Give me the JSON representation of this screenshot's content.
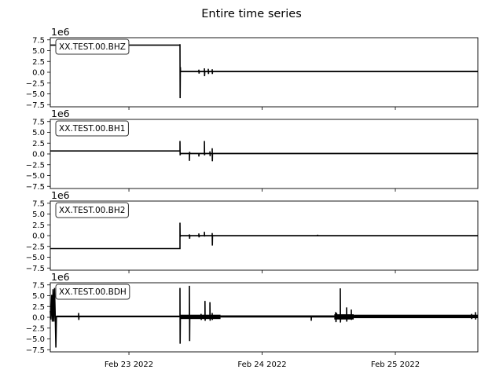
{
  "chart_data": {
    "type": "line",
    "title": "Entire time series",
    "xlim": [
      "2022-02-22T09:50",
      "2022-02-25T14:52"
    ],
    "ylim": [
      -8,
      8
    ],
    "y_ticks": [
      "7.5",
      "5.0",
      "2.5",
      "0.0",
      "−2.5",
      "−5.0",
      "−7.5"
    ],
    "y_tick_values": [
      7.5,
      5,
      2.5,
      0,
      -2.5,
      -5,
      -7.5
    ],
    "y_offset_label": "1e6",
    "x_ticks": [
      {
        "label": "Feb 23 2022",
        "t": "2022-02-23T00:00"
      },
      {
        "label": "Feb 24 2022",
        "t": "2022-02-24T00:00"
      },
      {
        "label": "Feb 25 2022",
        "t": "2022-02-25T00:00"
      }
    ],
    "grid": false,
    "series_color": "#000000",
    "series": [
      {
        "name": "XX.TEST.00.BHZ",
        "points": [
          [
            "2022-02-22T09:50",
            6.3
          ],
          [
            "2022-02-23T09:12",
            6.3
          ],
          [
            "2022-02-23T09:12",
            6.5
          ],
          [
            "2022-02-23T09:14",
            -6.0
          ],
          [
            "2022-02-23T09:16",
            1.2
          ],
          [
            "2022-02-23T09:18",
            0.2
          ],
          [
            "2022-02-23T12:36",
            0.2
          ],
          [
            "2022-02-23T12:36",
            0.6
          ],
          [
            "2022-02-23T12:38",
            -0.3
          ],
          [
            "2022-02-23T12:40",
            0.2
          ],
          [
            "2022-02-23T13:36",
            0.2
          ],
          [
            "2022-02-23T13:36",
            0.9
          ],
          [
            "2022-02-23T13:38",
            -0.9
          ],
          [
            "2022-02-23T13:40",
            0.2
          ],
          [
            "2022-02-23T14:18",
            0.2
          ],
          [
            "2022-02-23T14:18",
            0.8
          ],
          [
            "2022-02-23T14:20",
            -0.4
          ],
          [
            "2022-02-23T14:22",
            0.2
          ],
          [
            "2022-02-23T15:00",
            0.2
          ],
          [
            "2022-02-23T15:00",
            0.7
          ],
          [
            "2022-02-23T15:02",
            -0.4
          ],
          [
            "2022-02-23T15:04",
            0.2
          ],
          [
            "2022-02-25T14:52",
            0.2
          ]
        ],
        "noise": [
          {
            "from": "2022-02-23T09:18",
            "to": "2022-02-25T14:52",
            "center": 0.2,
            "amp": 0.15
          }
        ]
      },
      {
        "name": "XX.TEST.00.BH1",
        "points": [
          [
            "2022-02-22T09:50",
            0.7
          ],
          [
            "2022-02-23T09:12",
            0.7
          ],
          [
            "2022-02-23T09:12",
            3.0
          ],
          [
            "2022-02-23T09:14",
            -0.3
          ],
          [
            "2022-02-23T09:16",
            0.1
          ],
          [
            "2022-02-23T10:54",
            0.1
          ],
          [
            "2022-02-23T10:54",
            -1.6
          ],
          [
            "2022-02-23T10:56",
            0.5
          ],
          [
            "2022-02-23T10:58",
            0.1
          ],
          [
            "2022-02-23T12:36",
            0.1
          ],
          [
            "2022-02-23T12:36",
            -0.6
          ],
          [
            "2022-02-23T12:38",
            0.1
          ],
          [
            "2022-02-23T13:36",
            0.1
          ],
          [
            "2022-02-23T13:36",
            3.0
          ],
          [
            "2022-02-23T13:38",
            -0.3
          ],
          [
            "2022-02-23T13:40",
            0.1
          ],
          [
            "2022-02-23T14:36",
            0.1
          ],
          [
            "2022-02-23T14:36",
            0.6
          ],
          [
            "2022-02-23T14:38",
            -0.5
          ],
          [
            "2022-02-23T14:40",
            0.1
          ],
          [
            "2022-02-23T15:00",
            0.1
          ],
          [
            "2022-02-23T15:00",
            1.3
          ],
          [
            "2022-02-23T15:02",
            -1.7
          ],
          [
            "2022-02-23T15:04",
            0.1
          ],
          [
            "2022-02-25T14:52",
            0.1
          ]
        ],
        "noise": [
          {
            "from": "2022-02-23T09:16",
            "to": "2022-02-25T14:52",
            "center": 0.1,
            "amp": 0.12
          }
        ]
      },
      {
        "name": "XX.TEST.00.BH2",
        "points": [
          [
            "2022-02-22T09:50",
            -3.0
          ],
          [
            "2022-02-23T09:12",
            -3.0
          ],
          [
            "2022-02-23T09:12",
            3.0
          ],
          [
            "2022-02-23T09:14",
            -0.3
          ],
          [
            "2022-02-23T09:16",
            0.0
          ],
          [
            "2022-02-23T10:54",
            0.0
          ],
          [
            "2022-02-23T10:54",
            0.3
          ],
          [
            "2022-02-23T10:56",
            -0.7
          ],
          [
            "2022-02-23T10:58",
            0.0
          ],
          [
            "2022-02-23T12:36",
            0.0
          ],
          [
            "2022-02-23T12:36",
            0.5
          ],
          [
            "2022-02-23T12:38",
            -0.4
          ],
          [
            "2022-02-23T12:40",
            0.0
          ],
          [
            "2022-02-23T13:36",
            0.0
          ],
          [
            "2022-02-23T13:36",
            0.9
          ],
          [
            "2022-02-23T13:38",
            -0.2
          ],
          [
            "2022-02-23T13:40",
            0.0
          ],
          [
            "2022-02-23T15:00",
            0.0
          ],
          [
            "2022-02-23T15:00",
            0.6
          ],
          [
            "2022-02-23T15:02",
            -2.3
          ],
          [
            "2022-02-23T15:04",
            0.0
          ],
          [
            "2022-02-24T10:00",
            0.0
          ],
          [
            "2022-02-24T10:00",
            0.2
          ],
          [
            "2022-02-24T10:02",
            0.0
          ],
          [
            "2022-02-25T14:52",
            0.0
          ]
        ],
        "noise": [
          {
            "from": "2022-02-23T09:16",
            "to": "2022-02-25T14:52",
            "center": 0.0,
            "amp": 0.1
          }
        ]
      },
      {
        "name": "XX.TEST.00.BDH",
        "points": [
          [
            "2022-02-22T09:50",
            1.5
          ],
          [
            "2022-02-22T09:55",
            -0.5
          ],
          [
            "2022-02-22T10:05",
            5.2
          ],
          [
            "2022-02-22T10:12",
            -1.0
          ],
          [
            "2022-02-22T10:20",
            6.5
          ],
          [
            "2022-02-22T10:28",
            -1.0
          ],
          [
            "2022-02-22T10:36",
            6.8
          ],
          [
            "2022-02-22T10:44",
            -0.5
          ],
          [
            "2022-02-22T10:50",
            -7.0
          ],
          [
            "2022-02-22T10:56",
            0.2
          ],
          [
            "2022-02-22T14:56",
            0.2
          ],
          [
            "2022-02-22T14:56",
            1.0
          ],
          [
            "2022-02-22T14:58",
            -0.6
          ],
          [
            "2022-02-22T15:00",
            0.2
          ],
          [
            "2022-02-23T09:12",
            0.2
          ],
          [
            "2022-02-23T09:12",
            6.8
          ],
          [
            "2022-02-23T09:14",
            -6.1
          ],
          [
            "2022-02-23T09:16",
            0.2
          ],
          [
            "2022-02-23T10:54",
            0.2
          ],
          [
            "2022-02-23T10:54",
            7.3
          ],
          [
            "2022-02-23T10:56",
            -5.5
          ],
          [
            "2022-02-23T10:58",
            0.2
          ],
          [
            "2022-02-23T13:00",
            0.2
          ],
          [
            "2022-02-23T13:00",
            0.8
          ],
          [
            "2022-02-23T13:02",
            -0.6
          ],
          [
            "2022-02-23T13:04",
            0.2
          ],
          [
            "2022-02-23T13:42",
            0.2
          ],
          [
            "2022-02-23T13:42",
            3.8
          ],
          [
            "2022-02-23T13:44",
            -0.8
          ],
          [
            "2022-02-23T13:46",
            0.2
          ],
          [
            "2022-02-23T14:36",
            0.2
          ],
          [
            "2022-02-23T14:36",
            3.5
          ],
          [
            "2022-02-23T14:38",
            -0.8
          ],
          [
            "2022-02-23T14:40",
            0.2
          ],
          [
            "2022-02-23T15:00",
            0.2
          ],
          [
            "2022-02-23T15:00",
            1.0
          ],
          [
            "2022-02-23T15:02",
            -0.6
          ],
          [
            "2022-02-23T15:04",
            0.2
          ],
          [
            "2022-02-24T08:51",
            0.2
          ],
          [
            "2022-02-24T08:51",
            -0.8
          ],
          [
            "2022-02-24T08:53",
            0.2
          ],
          [
            "2022-02-24T13:14",
            0.2
          ],
          [
            "2022-02-24T13:14",
            1.2
          ],
          [
            "2022-02-24T13:18",
            -1.1
          ],
          [
            "2022-02-24T13:24",
            1.0
          ],
          [
            "2022-02-24T13:30",
            0.2
          ],
          [
            "2022-02-24T14:05",
            0.2
          ],
          [
            "2022-02-24T14:05",
            6.7
          ],
          [
            "2022-02-24T14:07",
            -1.2
          ],
          [
            "2022-02-24T14:09",
            0.2
          ],
          [
            "2022-02-24T15:13",
            0.2
          ],
          [
            "2022-02-24T15:13",
            2.3
          ],
          [
            "2022-02-24T15:15",
            -1.0
          ],
          [
            "2022-02-24T15:17",
            0.2
          ],
          [
            "2022-02-24T16:04",
            0.2
          ],
          [
            "2022-02-24T16:04",
            1.8
          ],
          [
            "2022-02-24T16:06",
            -0.6
          ],
          [
            "2022-02-24T16:08",
            0.2
          ],
          [
            "2022-02-25T13:44",
            0.2
          ],
          [
            "2022-02-25T13:44",
            0.8
          ],
          [
            "2022-02-25T13:46",
            -0.4
          ],
          [
            "2022-02-25T13:48",
            0.2
          ],
          [
            "2022-02-25T14:26",
            0.2
          ],
          [
            "2022-02-25T14:26",
            1.2
          ],
          [
            "2022-02-25T14:28",
            -0.5
          ],
          [
            "2022-02-25T14:30",
            0.2
          ],
          [
            "2022-02-25T14:52",
            0.2
          ]
        ],
        "noise": [
          {
            "from": "2022-02-22T10:56",
            "to": "2022-02-23T09:12",
            "center": 0.2,
            "amp": 0.2
          },
          {
            "from": "2022-02-23T09:16",
            "to": "2022-02-23T16:30",
            "center": 0.1,
            "amp": 0.5
          },
          {
            "from": "2022-02-23T16:30",
            "to": "2022-02-24T13:00",
            "center": 0.2,
            "amp": 0.25
          },
          {
            "from": "2022-02-24T13:00",
            "to": "2022-02-24T16:30",
            "center": 0.1,
            "amp": 0.6
          },
          {
            "from": "2022-02-24T16:30",
            "to": "2022-02-25T14:52",
            "center": 0.2,
            "amp": 0.4
          }
        ]
      }
    ]
  }
}
